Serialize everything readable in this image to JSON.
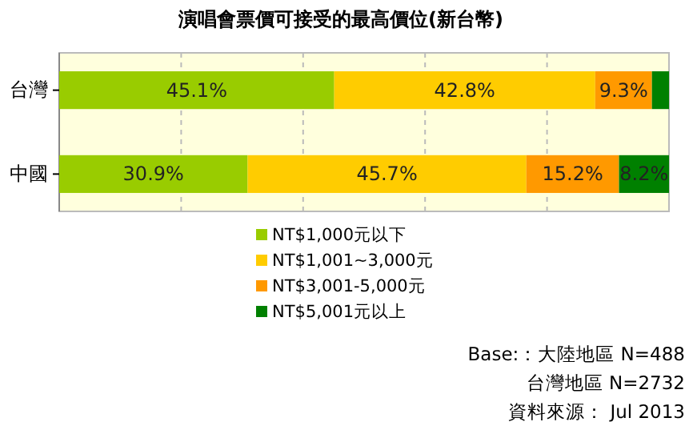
{
  "chart_data": {
    "type": "bar",
    "orientation": "horizontal",
    "stacked": true,
    "title": "演唱會票價可接受的最高價位(新台幣)",
    "categories": [
      "台灣",
      "中國"
    ],
    "series": [
      {
        "name": "NT$1,000元以下",
        "color": "#99cc00",
        "values": [
          45.1,
          30.9
        ],
        "value_labels": [
          "45.1%",
          "30.9%"
        ]
      },
      {
        "name": "NT$1,001~3,000元",
        "color": "#ffcc00",
        "values": [
          42.8,
          45.7
        ],
        "value_labels": [
          "42.8%",
          "45.7%"
        ]
      },
      {
        "name": "NT$3,001-5,000元",
        "color": "#ff9900",
        "values": [
          9.3,
          15.2
        ],
        "value_labels": [
          "9.3%",
          "15.2%"
        ]
      },
      {
        "name": "NT$5,001元以上",
        "color": "#008000",
        "values": [
          2.8,
          8.2
        ],
        "value_labels": [
          null,
          "8.2%"
        ]
      }
    ],
    "xlim": [
      0,
      100
    ],
    "xticks": [
      {
        "value": 0,
        "label": null
      },
      {
        "value": 20,
        "label": null
      },
      {
        "value": 40,
        "label": null
      },
      {
        "value": 60,
        "label": null
      },
      {
        "value": 80,
        "label": null
      },
      {
        "value": 100,
        "label": null
      }
    ],
    "tick_labels": "y",
    "grid": "x",
    "legend": "bottom",
    "annotations": [
      "Base:：大陸地區 N=488",
      "台灣地區 N=2732",
      "資料來源： Jul 2013"
    ]
  }
}
